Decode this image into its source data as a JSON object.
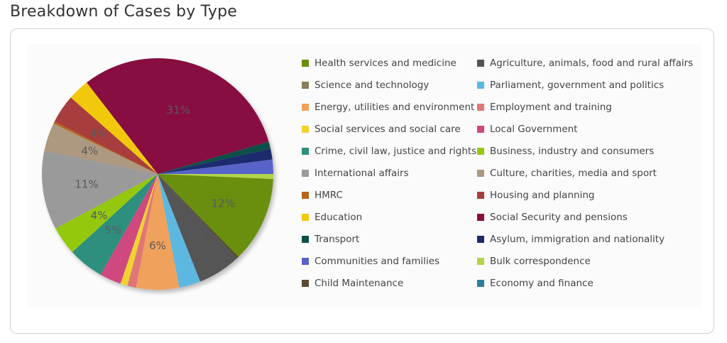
{
  "page": {
    "title": "Breakdown of Cases by Type"
  },
  "chart_data": {
    "type": "pie",
    "slices": [
      {
        "name": "Bulk correspondence",
        "value": 0.7,
        "color": "#b4d44a",
        "label": ""
      },
      {
        "name": "Health services and medicine",
        "value": 12,
        "color": "#6b8e0d",
        "label": "12%"
      },
      {
        "name": "Child Maintenance",
        "value": 0.3,
        "color": "#5b4a32",
        "label": ""
      },
      {
        "name": "Agriculture, animals, food and rural affairs",
        "value": 6,
        "color": "#555555",
        "label": "6%"
      },
      {
        "name": "Parliament, government and politics",
        "value": 3,
        "color": "#5bb8e0",
        "label": ""
      },
      {
        "name": "Energy, utilities and environment",
        "value": 6,
        "color": "#f0a15c",
        "label": "6%"
      },
      {
        "name": "Employment and training",
        "value": 1.2,
        "color": "#e07777",
        "label": ""
      },
      {
        "name": "Social services and social care",
        "value": 1,
        "color": "#f0d230",
        "label": ""
      },
      {
        "name": "Local Government",
        "value": 3,
        "color": "#d0487e",
        "label": ""
      },
      {
        "name": "Crime, civil law, justice and rights",
        "value": 5,
        "color": "#2e8f7f",
        "label": "5%"
      },
      {
        "name": "Business, industry and consumers",
        "value": 4,
        "color": "#94c80c",
        "label": "4%"
      },
      {
        "name": "International affairs",
        "value": 11,
        "color": "#9a9a9a",
        "label": "11%"
      },
      {
        "name": "Culture, charities, media and sport",
        "value": 4,
        "color": "#ad9880",
        "label": "4%"
      },
      {
        "name": "HMRC",
        "value": 0.3,
        "color": "#b5651d",
        "label": ""
      },
      {
        "name": "Housing and planning",
        "value": 4,
        "color": "#a83d3d",
        "label": "4%"
      },
      {
        "name": "Education",
        "value": 3,
        "color": "#f2c80f",
        "label": ""
      },
      {
        "name": "Social Security and pensions",
        "value": 31,
        "color": "#88103f",
        "label": "31%"
      },
      {
        "name": "Transport",
        "value": 1,
        "color": "#0d5049",
        "label": ""
      },
      {
        "name": "Asylum, immigration and nationality",
        "value": 1.5,
        "color": "#1f2b6e",
        "label": ""
      },
      {
        "name": "Communities and families",
        "value": 2,
        "color": "#5963c7",
        "label": ""
      },
      {
        "name": "Economy and finance",
        "value": 0,
        "color": "#2f7f9a",
        "label": ""
      }
    ],
    "legend": {
      "placement": "right",
      "items": [
        {
          "label": "Health services and medicine",
          "color": "#6b8e0d"
        },
        {
          "label": "Agriculture, animals, food and rural affairs",
          "color": "#555555"
        },
        {
          "label": "Science and technology",
          "color": "#8b7d5a"
        },
        {
          "label": "Parliament, government and politics",
          "color": "#5bb8e0"
        },
        {
          "label": "Energy, utilities and environment",
          "color": "#f0a15c"
        },
        {
          "label": "Employment and training",
          "color": "#e07777"
        },
        {
          "label": "Social services and social care",
          "color": "#f0d230"
        },
        {
          "label": "Local Government",
          "color": "#d0487e"
        },
        {
          "label": "Crime, civil law, justice and rights",
          "color": "#2e8f7f"
        },
        {
          "label": "Business, industry and consumers",
          "color": "#94c80c"
        },
        {
          "label": "International affairs",
          "color": "#9a9a9a"
        },
        {
          "label": "Culture, charities, media and sport",
          "color": "#ad9880"
        },
        {
          "label": "HMRC",
          "color": "#b5651d"
        },
        {
          "label": "Housing and planning",
          "color": "#a83d3d"
        },
        {
          "label": "Education",
          "color": "#f2c80f"
        },
        {
          "label": "Social Security and pensions",
          "color": "#88103f"
        },
        {
          "label": "Transport",
          "color": "#0d5049"
        },
        {
          "label": "Asylum, immigration and nationality",
          "color": "#1f2b6e"
        },
        {
          "label": "Communities and families",
          "color": "#5963c7"
        },
        {
          "label": "Bulk correspondence",
          "color": "#b4d44a"
        },
        {
          "label": "Child Maintenance",
          "color": "#5b4a32"
        },
        {
          "label": "Economy and finance",
          "color": "#2f7f9a"
        }
      ]
    }
  }
}
